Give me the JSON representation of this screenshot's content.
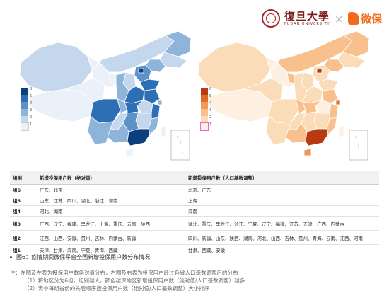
{
  "header": {
    "university_name": "復旦大學",
    "university_en": "FUDAN UNIVERSITY",
    "separator": "×",
    "brand": "微保"
  },
  "maps": {
    "left": {
      "base_color": "#1f5fa8",
      "legend": [
        "6",
        "5",
        "4",
        "3",
        "2",
        "1"
      ],
      "legend_colors": [
        "#0b3f7f",
        "#2d6fb4",
        "#5b92c8",
        "#8eb4da",
        "#c4d7ec",
        "#eaf1f8"
      ]
    },
    "right": {
      "base_color": "#d04a12",
      "legend": [
        "6",
        "5",
        "4",
        "3",
        "2",
        "1"
      ],
      "legend_colors": [
        "#b83a10",
        "#de6b2a",
        "#f09a5a",
        "#f7c08c",
        "#fbdcb9",
        "#fdf0e0"
      ]
    }
  },
  "table": {
    "headers": [
      "组别",
      "新增投保用户数（绝对值）",
      "新增投保用户数（人口基数调整）"
    ],
    "rows": [
      {
        "group": "组6",
        "absolute": "广东、北京",
        "adjusted": "北京、广东"
      },
      {
        "group": "组5",
        "absolute": "山东、江苏、四川、湖北、浙江、河南",
        "adjusted": "上海"
      },
      {
        "group": "组4",
        "absolute": "河北、湖南",
        "adjusted": "海南"
      },
      {
        "group": "组3",
        "absolute": "广西、辽宁、福建、黑龙江、上海、重庆、云南、陕西",
        "adjusted": "湖北、重庆、黑龙江、浙江、宁夏、辽宁、福建、江苏、天津、广西、内蒙古"
      },
      {
        "group": "组2",
        "absolute": "江西、山西、安徽、贵州、吉林、内蒙古、新疆",
        "adjusted": "四川、新疆、山东、陕西、湖南、河北、山西、吉林、贵州、青海、云南、江西、河南"
      },
      {
        "group": "组1",
        "absolute": "天津、甘肃、海南、宁夏、青海、西藏",
        "adjusted": "甘肃、西藏、安徽"
      }
    ]
  },
  "caption": "图6：疫情期间微保平台全国新增投保用户数分布情况",
  "notes": {
    "intro": "注：左图及左表为投保用户数绝对值分布，右图及右表为投保用户经过各省人口基数调整后的分布",
    "item1": "（1）将地区分为6组，组别越大，颜色越深地区新增投保用户数（绝对值/人口基数调整）越多",
    "item2": "（2）表中每组省份的先后顺序按投保用户数（绝对值/人口基数调整）大小排序"
  }
}
